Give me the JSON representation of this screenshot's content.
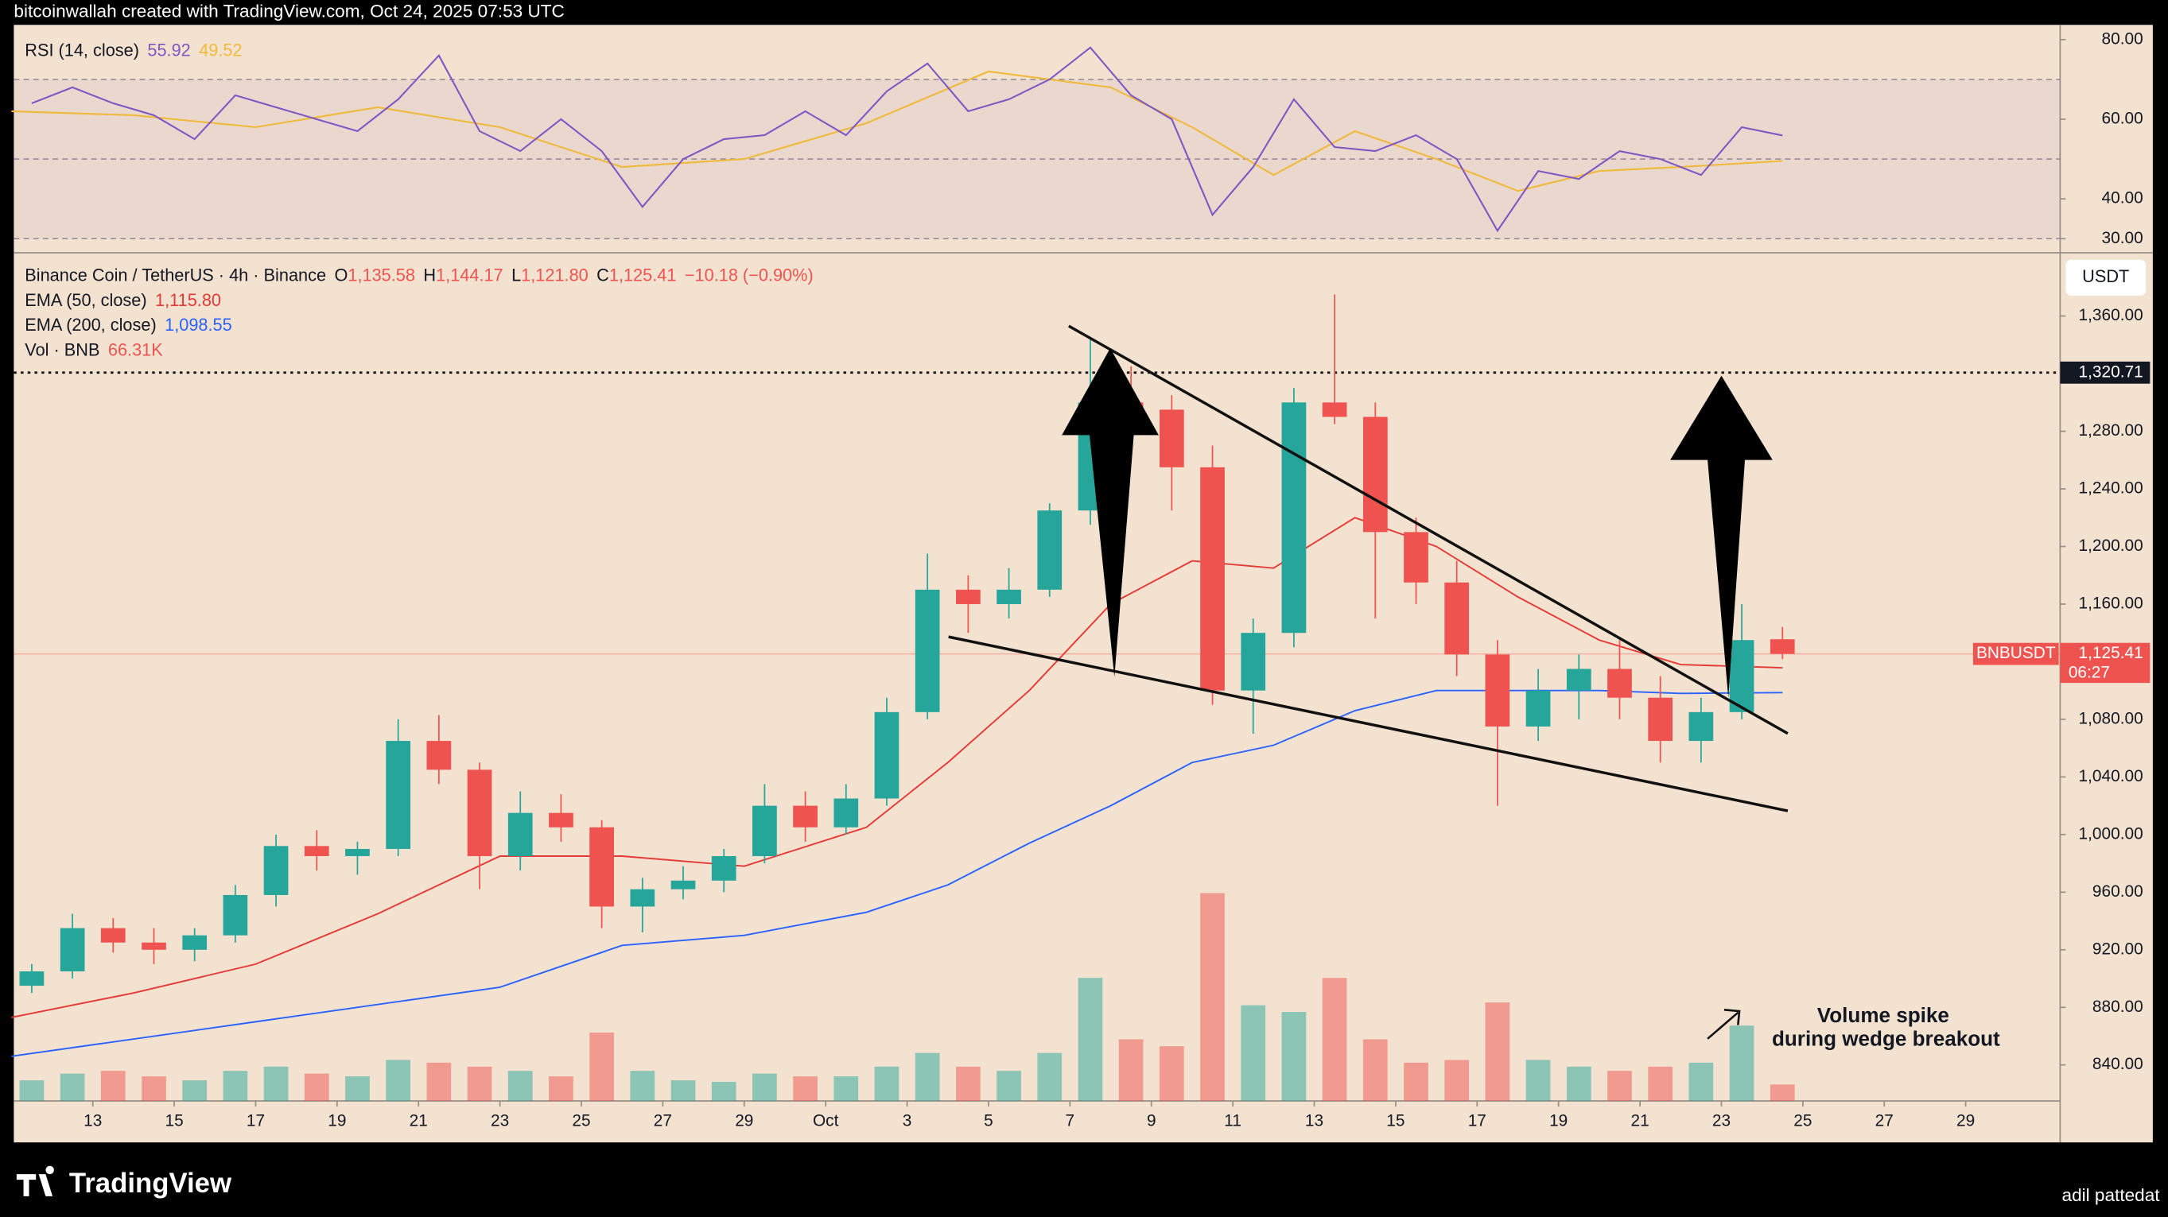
{
  "header": "bitcoinwallah created with TradingView.com, Oct 24, 2025 07:53 UTC",
  "footer": {
    "brand": "TradingView",
    "author": "adil pattedat"
  },
  "chart_data": [
    {
      "type": "candlestick",
      "title": "Binance Coin / TetherUS · 4h · Binance",
      "ohlc_legend": [
        {
          "key": "O",
          "value": "1,135.58"
        },
        {
          "key": "H",
          "value": "1,144.17"
        },
        {
          "key": "L",
          "value": "1,121.80"
        },
        {
          "key": "C",
          "value": "1,125.41"
        }
      ],
      "change": "−10.18 (−0.90%)",
      "up_color": "#26a69a",
      "down_color": "#ef5350",
      "x": [
        11.5,
        12.5,
        13.5,
        14.5,
        15.5,
        16.5,
        17.5,
        18.5,
        19.5,
        20.5,
        21.5,
        22.5,
        23.5,
        24.5,
        25.5,
        26.5,
        27.5,
        28.5,
        29.5,
        30.5,
        31.5,
        32.5,
        33.5,
        34.5,
        35.5,
        36.5,
        37.5,
        38.5,
        39.5,
        40.5,
        41.5,
        42.5,
        43.5,
        44.5,
        45.5,
        46.5,
        47.5,
        48.5,
        49.5,
        50.5,
        51.5,
        52.5,
        53.5,
        54.5
      ],
      "open": [
        895,
        905,
        935,
        925,
        920,
        930,
        958,
        992,
        985,
        990,
        1065,
        1045,
        985,
        1015,
        1005,
        950,
        962,
        968,
        985,
        1020,
        1005,
        1025,
        1085,
        1170,
        1160,
        1170,
        1225,
        1300,
        1295,
        1255,
        1100,
        1140,
        1300,
        1290,
        1210,
        1175,
        1125,
        1075,
        1100,
        1115,
        1095,
        1065,
        1085,
        1135.58
      ],
      "high": [
        910,
        945,
        942,
        935,
        935,
        965,
        1000,
        1003,
        995,
        1080,
        1083,
        1050,
        1030,
        1028,
        1010,
        970,
        978,
        990,
        1035,
        1030,
        1035,
        1095,
        1195,
        1180,
        1185,
        1230,
        1345,
        1325,
        1305,
        1270,
        1150,
        1310,
        1375,
        1300,
        1220,
        1190,
        1135,
        1115,
        1125,
        1135,
        1110,
        1095,
        1160,
        1144.17
      ],
      "low": [
        890,
        900,
        918,
        910,
        912,
        925,
        950,
        975,
        972,
        985,
        1035,
        962,
        975,
        995,
        935,
        932,
        955,
        960,
        980,
        995,
        1000,
        1020,
        1080,
        1140,
        1150,
        1165,
        1215,
        1270,
        1225,
        1090,
        1070,
        1130,
        1285,
        1150,
        1160,
        1110,
        1020,
        1065,
        1080,
        1080,
        1050,
        1050,
        1080,
        1121.8
      ],
      "close": [
        905,
        935,
        925,
        920,
        930,
        958,
        992,
        985,
        990,
        1065,
        1045,
        985,
        1015,
        1005,
        950,
        962,
        968,
        985,
        1020,
        1005,
        1025,
        1085,
        1170,
        1160,
        1170,
        1225,
        1300,
        1295,
        1255,
        1100,
        1140,
        1300,
        1290,
        1210,
        1175,
        1125,
        1075,
        1100,
        1115,
        1095,
        1065,
        1085,
        1135,
        1125.41
      ],
      "series": [
        {
          "name": "EMA (50, close)",
          "last_label": "1,115.80",
          "color": "#e53935",
          "x": [
            11,
            14,
            17,
            20,
            23,
            26,
            29,
            32,
            34,
            36,
            38,
            40,
            42,
            44,
            46,
            48,
            50,
            52,
            54.5
          ],
          "values": [
            873,
            890,
            910,
            945,
            985,
            985,
            978,
            1005,
            1050,
            1100,
            1160,
            1190,
            1185,
            1220,
            1200,
            1165,
            1135,
            1118,
            1115.8
          ]
        },
        {
          "name": "EMA (200, close)",
          "last_label": "1,098.55",
          "color": "#2962ff",
          "x": [
            11,
            17,
            23,
            26,
            29,
            32,
            34,
            36,
            38,
            40,
            42,
            44,
            46,
            48,
            50,
            52,
            54.5
          ],
          "values": [
            846,
            870,
            894,
            923,
            930,
            946,
            965,
            994,
            1020,
            1050,
            1062,
            1086,
            1100,
            1100,
            1100,
            1098,
            1098.55
          ]
        }
      ],
      "volume": {
        "name": "Vol · BNB",
        "last_label": "66.31K",
        "axis": "y3",
        "values": [
          83,
          110,
          121,
          99,
          83,
          121,
          138,
          110,
          99,
          165,
          154,
          138,
          121,
          99,
          275,
          121,
          83,
          77,
          110,
          99,
          99,
          138,
          193,
          138,
          121,
          193,
          495,
          248,
          220,
          836,
          385,
          358,
          495,
          248,
          154,
          165,
          396,
          165,
          138,
          121,
          138,
          154,
          303,
          66.31
        ]
      },
      "y3lim": [
        0,
        3400
      ],
      "xlim": [
        11.06,
        61.32
      ],
      "xticks": [
        13,
        15,
        17,
        19,
        21,
        23,
        25,
        27,
        29,
        {
          "value": 31,
          "label": "Oct"
        },
        {
          "value": 33,
          "label": "3"
        },
        {
          "value": 35,
          "label": "5"
        },
        {
          "value": 37,
          "label": "7"
        },
        {
          "value": 39,
          "label": "9"
        },
        {
          "value": 41,
          "label": "11"
        },
        {
          "value": 43,
          "label": "13"
        },
        {
          "value": 45,
          "label": "15"
        },
        {
          "value": 47,
          "label": "17"
        },
        {
          "value": 49,
          "label": "19"
        },
        {
          "value": 51,
          "label": "21"
        },
        {
          "value": 53,
          "label": "23"
        },
        {
          "value": 55,
          "label": "25"
        },
        {
          "value": 57,
          "label": "27"
        },
        {
          "value": 59,
          "label": "29"
        }
      ],
      "ylim": [
        815,
        1402
      ],
      "yticks": [
        {
          "value": 840,
          "label": "840.00"
        },
        {
          "value": 880,
          "label": "880.00"
        },
        {
          "value": 920,
          "label": "920.00"
        },
        {
          "value": 960,
          "label": "960.00"
        },
        {
          "value": 1000,
          "label": "1,000.00"
        },
        {
          "value": 1040,
          "label": "1,040.00"
        },
        {
          "value": 1080,
          "label": "1,080.00"
        },
        {
          "value": 1120,
          "label": "1,120.00"
        },
        {
          "value": 1160,
          "label": "1,160.00"
        },
        {
          "value": 1200,
          "label": "1,200.00"
        },
        {
          "value": 1240,
          "label": "1,240.00"
        },
        {
          "value": 1280,
          "label": "1,280.00"
        },
        {
          "value": 1320,
          "label": "1,320.00"
        },
        {
          "value": 1360,
          "label": "1,360.00"
        }
      ],
      "currency": "USDT",
      "hline": {
        "value": 1320.71,
        "label": "1,320.71"
      },
      "last_price": {
        "value": 1125.41,
        "label": "1,125.41"
      },
      "symbol": "BNBUSDT",
      "countdown": "06:27",
      "annotation": [
        "Volume spike",
        "during wedge breakout"
      ],
      "grid": false
    },
    {
      "type": "line",
      "title": "RSI (14, close)",
      "xlim": [
        11.06,
        61.32
      ],
      "ylim": [
        27.5,
        83
      ],
      "yticks": [
        {
          "value": 30,
          "label": "30.00"
        },
        {
          "value": 40,
          "label": "40.00"
        },
        {
          "value": 60,
          "label": "60.00"
        },
        {
          "value": 80,
          "label": "80.00"
        }
      ],
      "levels": [
        70,
        50,
        30
      ],
      "series": [
        {
          "color": "#7e57c2",
          "x": [
            11.5,
            12.5,
            13.5,
            14.5,
            15.5,
            16.5,
            17.5,
            18.5,
            19.5,
            20.5,
            21.5,
            22.5,
            23.5,
            24.5,
            25.5,
            26.5,
            27.5,
            28.5,
            29.5,
            30.5,
            31.5,
            32.5,
            33.5,
            34.5,
            35.5,
            36.5,
            37.5,
            38.5,
            39.5,
            40.5,
            41.5,
            42.5,
            43.5,
            44.5,
            45.5,
            46.5,
            47.5,
            48.5,
            49.5,
            50.5,
            51.5,
            52.5,
            53.5,
            54.5
          ],
          "values": [
            64,
            68,
            64,
            61,
            55,
            66,
            63,
            60,
            57,
            65,
            76,
            57,
            52,
            60,
            52,
            38,
            50,
            55,
            56,
            62,
            56,
            67,
            74,
            62,
            65,
            70,
            78,
            66,
            60,
            36,
            48,
            65,
            53,
            52,
            56,
            50,
            32,
            47,
            45,
            52,
            50,
            46,
            58,
            55.92
          ]
        },
        {
          "color": "#f0b93a",
          "x": [
            11,
            14,
            17,
            20,
            23,
            26,
            29,
            32,
            35,
            38,
            40,
            42,
            44,
            46,
            48,
            50,
            52,
            54.5
          ],
          "values": [
            62,
            61,
            58,
            63,
            58,
            48,
            50,
            59,
            72,
            68,
            58,
            46,
            57,
            50,
            42,
            47,
            48,
            49.52
          ]
        }
      ],
      "grid": false
    }
  ]
}
